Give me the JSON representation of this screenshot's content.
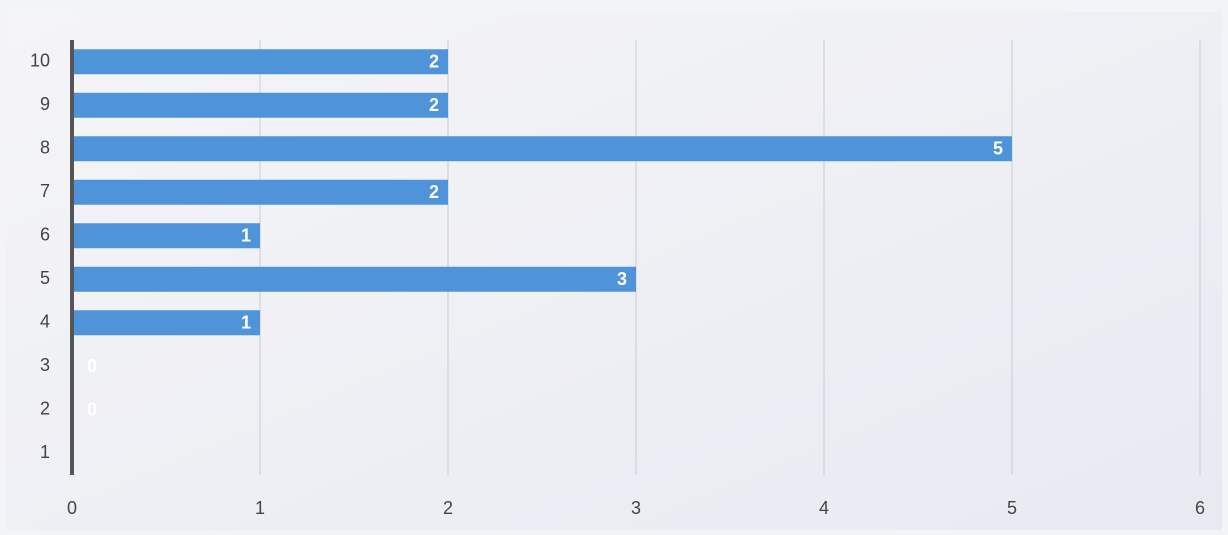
{
  "chart_data": {
    "type": "barh",
    "categories": [
      "1",
      "2",
      "3",
      "4",
      "5",
      "6",
      "7",
      "8",
      "9",
      "10"
    ],
    "values": [
      null,
      0,
      0,
      1,
      3,
      1,
      2,
      5,
      2,
      2
    ],
    "color": "#4f93d8",
    "xlim": [
      0,
      6
    ],
    "xticks": [
      0,
      1,
      2,
      3,
      4,
      5,
      6
    ],
    "grid": true
  }
}
